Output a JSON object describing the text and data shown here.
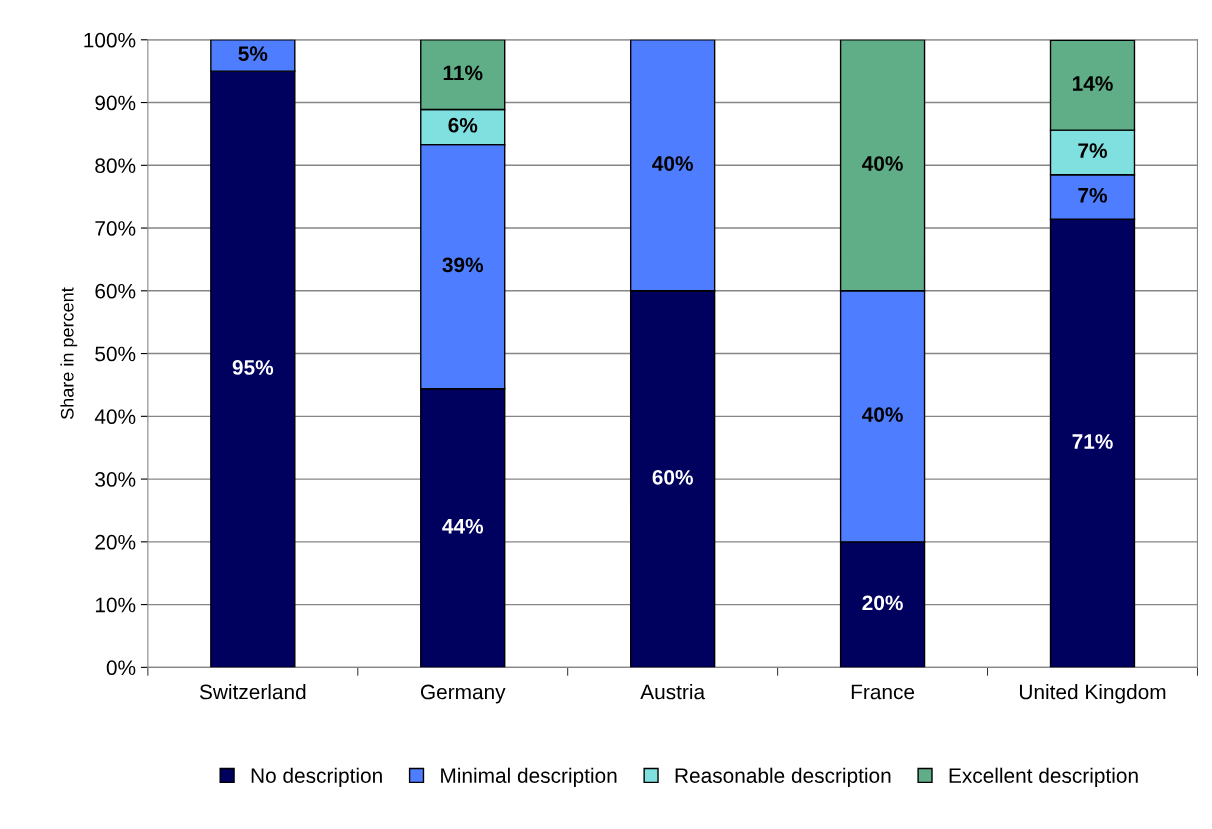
{
  "chart_data": {
    "type": "bar",
    "stacked": true,
    "ylabel": "Share in percent",
    "categories": [
      "Switzerland",
      "Germany",
      "Austria",
      "France",
      "United Kingdom"
    ],
    "series": [
      {
        "name": "No description",
        "color": "#00005e",
        "values": [
          95,
          44.4,
          60,
          20,
          71.4
        ],
        "value_labels": [
          "95%",
          "44%",
          "60%",
          "20%",
          "71%"
        ]
      },
      {
        "name": "Minimal description",
        "color": "#4f7dff",
        "values": [
          5,
          38.9,
          40,
          40,
          7.1
        ],
        "value_labels": [
          "5%",
          "39%",
          "40%",
          "40%",
          "7%"
        ]
      },
      {
        "name": "Reasonable description",
        "color": "#80e0e0",
        "values": [
          null,
          5.6,
          null,
          null,
          7.1
        ],
        "value_labels": [
          null,
          "6%",
          null,
          null,
          "7%"
        ]
      },
      {
        "name": "Excellent description",
        "color": "#5fae88",
        "values": [
          null,
          11.1,
          null,
          40,
          14.3
        ],
        "value_labels": [
          null,
          "11%",
          null,
          "40%",
          "14%"
        ]
      }
    ],
    "ylim": [
      0,
      100
    ],
    "yticks": [
      {
        "value": 0,
        "label": "0%"
      },
      {
        "value": 10,
        "label": "10%"
      },
      {
        "value": 20,
        "label": "20%"
      },
      {
        "value": 30,
        "label": "30%"
      },
      {
        "value": 40,
        "label": "40%"
      },
      {
        "value": 50,
        "label": "50%"
      },
      {
        "value": 60,
        "label": "60%"
      },
      {
        "value": 70,
        "label": "70%"
      },
      {
        "value": 80,
        "label": "80%"
      },
      {
        "value": 90,
        "label": "90%"
      },
      {
        "value": 100,
        "label": "100%"
      }
    ],
    "grid": "y",
    "legend": "bottom"
  }
}
